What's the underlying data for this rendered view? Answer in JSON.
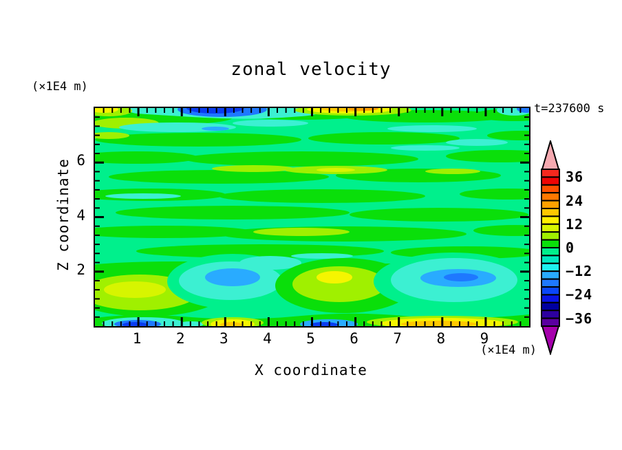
{
  "chart_data": {
    "type": "heatmap",
    "subtype": "filled-contour",
    "title": "zonal velocity",
    "time_annotation": "t=237600 s",
    "xlabel": "X coordinate",
    "x_unit": "(×1E4 m)",
    "xlim": [
      0,
      10
    ],
    "x_ticks": [
      1,
      2,
      3,
      4,
      5,
      6,
      7,
      8,
      9
    ],
    "x_minor_step": 0.2,
    "ylabel": "Z coordinate",
    "y_unit": "(×1E4 m)",
    "ylim": [
      0,
      8
    ],
    "y_ticks": [
      2,
      4,
      6
    ],
    "y_minor_step": 0.3333,
    "grid": false,
    "colorbar": {
      "position": "right",
      "tick_labels": [
        "36",
        "24",
        "12",
        "0",
        "−12",
        "−24",
        "−36"
      ],
      "label_every_n_segments": 3,
      "level_step": 4,
      "levels_range": [
        -40,
        40
      ],
      "colors_top_to_bottom": [
        "#F5281E",
        "#EE0505",
        "#FF5000",
        "#FF7800",
        "#FFA000",
        "#FFC800",
        "#FFF000",
        "#D7F500",
        "#A0F000",
        "#0ADF0A",
        "#00F08C",
        "#00E8C0",
        "#1EF0F0",
        "#29ABFF",
        "#1E78FF",
        "#0A46FA",
        "#0A14E6",
        "#0000A0",
        "#2D00A0",
        "#5A00A0"
      ],
      "over_arrow_color": "#F5A9B0",
      "under_arrow_color": "#A500AC"
    },
    "field_summary": [
      {
        "location": "top edge, x≈1.9–3.6",
        "description": "strong negative anomaly: cyan band with blue / deep-blue core (≈ −20 to −32)"
      },
      {
        "location": "top edge, x≈4.6–6.4",
        "description": "positive band: yellow with orange core (≈ +12 to +24)"
      },
      {
        "location": "top edge, x≈0–0.6",
        "description": "small positive yellow patch (≈ +8 to +16)"
      },
      {
        "location": "top edge, x≈9.4–10",
        "description": "negative patch: cyan/blue (≈ −12 to −24)"
      },
      {
        "location": "z≈1, x≈2.4–3.7",
        "description": "negative eddy: cyan with sky-blue core (≈ −12 to −20)"
      },
      {
        "location": "z≈1, x≈4.3–5.6",
        "description": "positive eddy: chartreuse with yellow core (≈ +8 to +16)"
      },
      {
        "location": "z≈1, x≈7.0–9.4",
        "description": "negative eddy: cyan with sky-blue core (≈ −12 to −20)"
      },
      {
        "location": "z≈0.7–1.4, x≈0.2–2.1",
        "description": "positive region: chartreuse / yellow-green (≈ +4 to +12)"
      },
      {
        "location": "bottom edge",
        "description": "alternating patches: blue minima near x≈1 and x≈4.7; yellow/gold maxima near x≈3 and x≈5.7–8.7"
      },
      {
        "location": "interior",
        "description": "weak flow near zero: interleaved green (0 to +4) and spring-green (−4 to 0) horizontal streaks"
      }
    ]
  },
  "palette": {
    "green": "#0ADF0A",
    "spring": "#00F08C",
    "chartreuse": "#A0F000",
    "ygreen": "#D7F500",
    "yellow": "#F5F500",
    "gold": "#FFC800",
    "orange": "#FFA000",
    "cyan": "#3CF0D2",
    "skyblue": "#29ABFF",
    "blue": "#1E78FF",
    "deepblue": "#0A3CF0"
  }
}
